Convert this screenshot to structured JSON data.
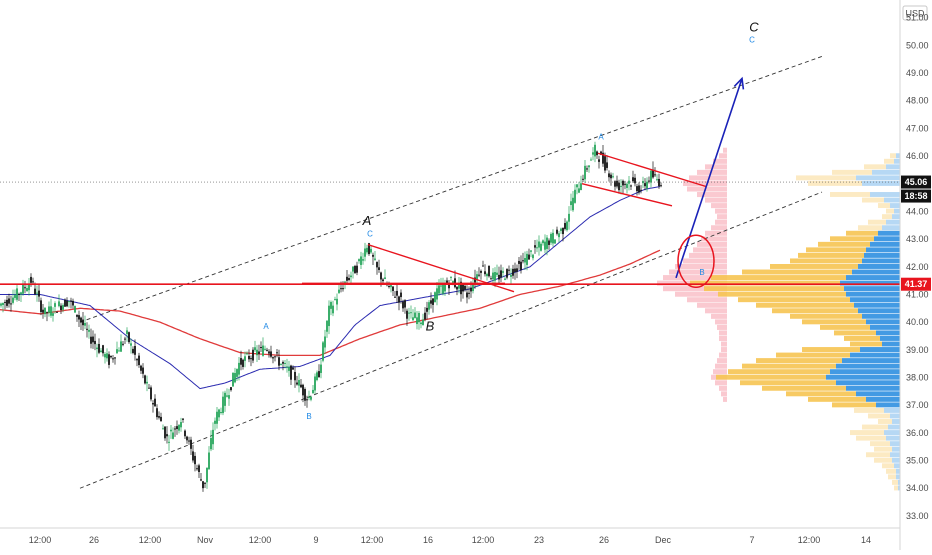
{
  "chart_data": {
    "type": "line",
    "title": "",
    "xlabel": "",
    "ylabel": "",
    "currency": "USD",
    "x_ticks": [
      "12:00",
      "26",
      "12:00",
      "Nov",
      "12:00",
      "9",
      "12:00",
      "16",
      "12:00",
      "23",
      "26",
      "Dec",
      "7",
      "12:00",
      "14"
    ],
    "y_ticks": [
      "33.00",
      "34.00",
      "35.00",
      "36.00",
      "37.00",
      "38.00",
      "39.00",
      "40.00",
      "41.00",
      "42.00",
      "43.00",
      "44.00",
      "45.00",
      "46.00",
      "47.00",
      "48.00",
      "49.00",
      "50.00",
      "51.00"
    ],
    "ylim": [
      32.6,
      51.6
    ],
    "n_bars": 660,
    "price_path": [
      [
        0,
        40.6
      ],
      [
        18,
        41.0
      ],
      [
        32,
        41.5
      ],
      [
        45,
        40.3
      ],
      [
        70,
        40.8
      ],
      [
        90,
        39.5
      ],
      [
        110,
        38.6
      ],
      [
        128,
        39.5
      ],
      [
        140,
        38.4
      ],
      [
        155,
        37.0
      ],
      [
        168,
        35.8
      ],
      [
        182,
        36.5
      ],
      [
        195,
        35.0
      ],
      [
        205,
        34.0
      ],
      [
        215,
        36.4
      ],
      [
        228,
        37.4
      ],
      [
        240,
        38.5
      ],
      [
        252,
        38.8
      ],
      [
        268,
        39.1
      ],
      [
        282,
        38.5
      ],
      [
        296,
        38.0
      ],
      [
        309,
        37.2
      ],
      [
        320,
        38.2
      ],
      [
        330,
        40.4
      ],
      [
        345,
        41.4
      ],
      [
        358,
        42.0
      ],
      [
        368,
        42.8
      ],
      [
        378,
        41.9
      ],
      [
        390,
        41.2
      ],
      [
        400,
        40.9
      ],
      [
        410,
        40.2
      ],
      [
        423,
        40.1
      ],
      [
        438,
        41.1
      ],
      [
        452,
        41.5
      ],
      [
        468,
        41.0
      ],
      [
        482,
        42.0
      ],
      [
        495,
        41.6
      ],
      [
        510,
        41.8
      ],
      [
        522,
        42.1
      ],
      [
        535,
        42.6
      ],
      [
        552,
        43.0
      ],
      [
        565,
        43.4
      ],
      [
        574,
        44.5
      ],
      [
        584,
        45.3
      ],
      [
        596,
        46.2
      ],
      [
        606,
        45.7
      ],
      [
        618,
        44.9
      ],
      [
        630,
        45.1
      ],
      [
        642,
        44.8
      ],
      [
        652,
        45.3
      ],
      [
        660,
        45.1
      ]
    ],
    "ma_fast_path": [
      [
        0,
        41.0
      ],
      [
        40,
        41.0
      ],
      [
        90,
        40.6
      ],
      [
        130,
        39.4
      ],
      [
        170,
        38.5
      ],
      [
        200,
        37.6
      ],
      [
        225,
        37.8
      ],
      [
        260,
        38.3
      ],
      [
        300,
        38.4
      ],
      [
        330,
        38.8
      ],
      [
        355,
        39.9
      ],
      [
        380,
        40.6
      ],
      [
        410,
        40.8
      ],
      [
        440,
        41.0
      ],
      [
        470,
        41.2
      ],
      [
        500,
        41.6
      ],
      [
        530,
        42.0
      ],
      [
        560,
        42.9
      ],
      [
        590,
        43.8
      ],
      [
        620,
        44.4
      ],
      [
        645,
        44.8
      ],
      [
        660,
        44.9
      ]
    ],
    "ma_slow_path": [
      [
        0,
        40.45
      ],
      [
        40,
        40.3
      ],
      [
        80,
        40.5
      ],
      [
        120,
        40.4
      ],
      [
        160,
        40.0
      ],
      [
        200,
        39.4
      ],
      [
        240,
        38.9
      ],
      [
        280,
        38.8
      ],
      [
        320,
        38.8
      ],
      [
        360,
        39.4
      ],
      [
        400,
        39.9
      ],
      [
        440,
        40.2
      ],
      [
        480,
        40.5
      ],
      [
        520,
        41.0
      ],
      [
        560,
        41.3
      ],
      [
        600,
        41.7
      ],
      [
        630,
        42.1
      ],
      [
        660,
        42.6
      ]
    ],
    "price_label": "45.06",
    "price_line_value": 45.06,
    "countdown_label": "18:58",
    "support_label": "41.37",
    "support_value": 41.37,
    "trend_channel": {
      "upper": [
        [
          80,
          40.0
        ],
        [
          822,
          49.6
        ]
      ],
      "lower": [
        [
          80,
          34.0
        ],
        [
          822,
          44.7
        ]
      ]
    },
    "projection_arrow": [
      [
        676,
        41.6
      ],
      [
        742,
        48.8
      ]
    ],
    "triangle_1": {
      "upper": [
        [
          368,
          42.8
        ],
        [
          514,
          41.1
        ]
      ],
      "lower": [
        [
          302,
          41.4
        ],
        [
          505,
          41.4
        ]
      ]
    },
    "triangle_2": {
      "upper": [
        [
          598,
          46.1
        ],
        [
          706,
          44.9
        ]
      ],
      "lower": [
        [
          582,
          45.0
        ],
        [
          672,
          44.2
        ]
      ]
    },
    "circle_marker": {
      "center": [
        696,
        42.2
      ],
      "label": "B"
    },
    "wave_labels": [
      {
        "text": "A",
        "bar": 367,
        "value": 43.5,
        "style": "large"
      },
      {
        "text": "C",
        "bar": 370,
        "value": 43.1,
        "style": "small"
      },
      {
        "text": "B",
        "bar": 430,
        "value": 39.7,
        "style": "large"
      },
      {
        "text": "C",
        "bar": 754,
        "value": 50.5,
        "style": "large"
      },
      {
        "text": "C",
        "bar": 752,
        "value": 50.1,
        "style": "small"
      },
      {
        "text": "A",
        "bar": 266,
        "value": 39.75,
        "style": "small"
      },
      {
        "text": "B",
        "bar": 309,
        "value": 36.5,
        "style": "small"
      },
      {
        "text": "A",
        "bar": 601,
        "value": 46.6,
        "style": "small"
      },
      {
        "text": "B",
        "bar": 702,
        "value": 41.7,
        "style": "small"
      }
    ],
    "volume_profile": {
      "levels": [
        44.6,
        44.4,
        44.2,
        44.0,
        43.8,
        43.6,
        43.4,
        43.2,
        43.0,
        42.8,
        42.6,
        42.4,
        42.2,
        42.0,
        41.8,
        41.6,
        41.4,
        41.2,
        41.0,
        40.8,
        40.6,
        40.4,
        40.2,
        40.0,
        39.8,
        39.6,
        39.4,
        39.2,
        39.0,
        38.8,
        38.6,
        38.4,
        38.2,
        38.0,
        37.8,
        37.6,
        37.4,
        37.2,
        37.0,
        36.8,
        36.6,
        36.4,
        36.2,
        36.0,
        35.8,
        35.6,
        35.4,
        35.2,
        35.0,
        34.8,
        34.6,
        34.4,
        34.2,
        34.0,
        45.0,
        45.2,
        45.4,
        45.6,
        45.8,
        46.0
      ],
      "up_volume": [
        40,
        22,
        12,
        8,
        10,
        18,
        24,
        32,
        44,
        52,
        60,
        66,
        72,
        88,
        110,
        135,
        150,
        140,
        128,
        112,
        98,
        86,
        72,
        64,
        50,
        42,
        36,
        32,
        58,
        74,
        86,
        94,
        102,
        110,
        96,
        84,
        70,
        58,
        44,
        30,
        22,
        14,
        26,
        34,
        30,
        20,
        18,
        24,
        18,
        12,
        10,
        8,
        6,
        4,
        54,
        60,
        40,
        22,
        10,
        6
      ],
      "down_volume": [
        30,
        16,
        10,
        6,
        8,
        14,
        18,
        22,
        26,
        30,
        34,
        36,
        38,
        42,
        48,
        54,
        60,
        56,
        54,
        50,
        46,
        42,
        38,
        34,
        30,
        24,
        20,
        18,
        40,
        50,
        58,
        64,
        70,
        74,
        64,
        54,
        44,
        34,
        24,
        16,
        10,
        8,
        12,
        16,
        14,
        10,
        8,
        10,
        8,
        6,
        4,
        4,
        2,
        2,
        38,
        44,
        28,
        14,
        6,
        4
      ],
      "highlighted_zone": [
        44.4,
        46.4
      ]
    },
    "session_profile": {
      "levels": [
        46.2,
        46.0,
        45.8,
        45.6,
        45.4,
        45.2,
        45.0,
        44.8,
        44.6,
        44.4,
        44.2,
        44.0,
        43.8,
        43.6,
        43.4,
        43.2,
        43.0,
        42.8,
        42.6,
        42.4,
        42.2,
        42.0,
        41.8,
        41.6,
        41.4,
        41.2,
        41.0,
        40.8,
        40.6,
        40.4,
        40.2,
        40.0,
        39.8,
        39.6,
        39.4,
        39.2,
        39.0,
        38.8,
        38.6,
        38.4,
        38.2,
        38.0,
        37.8,
        37.6,
        37.4,
        37.2
      ],
      "volume": [
        4,
        8,
        14,
        22,
        30,
        38,
        44,
        40,
        30,
        22,
        16,
        12,
        10,
        12,
        16,
        22,
        26,
        30,
        34,
        38,
        44,
        52,
        58,
        64,
        70,
        64,
        52,
        40,
        30,
        22,
        16,
        12,
        10,
        8,
        8,
        6,
        6,
        8,
        10,
        12,
        14,
        16,
        12,
        8,
        6,
        4
      ]
    },
    "colors": {
      "up": "#26a65b",
      "down": "#111111",
      "ma_fast": "#2b2bb0",
      "ma_slow": "#e03b3b",
      "support": "#e8141e",
      "arrow": "#1a22b8",
      "triangle": "#e8141e",
      "wave_label": "#1e88e5",
      "vp_up": "#f6c452",
      "vp_down": "#2f8fe0",
      "session_profile": "#f8b7c0"
    }
  }
}
